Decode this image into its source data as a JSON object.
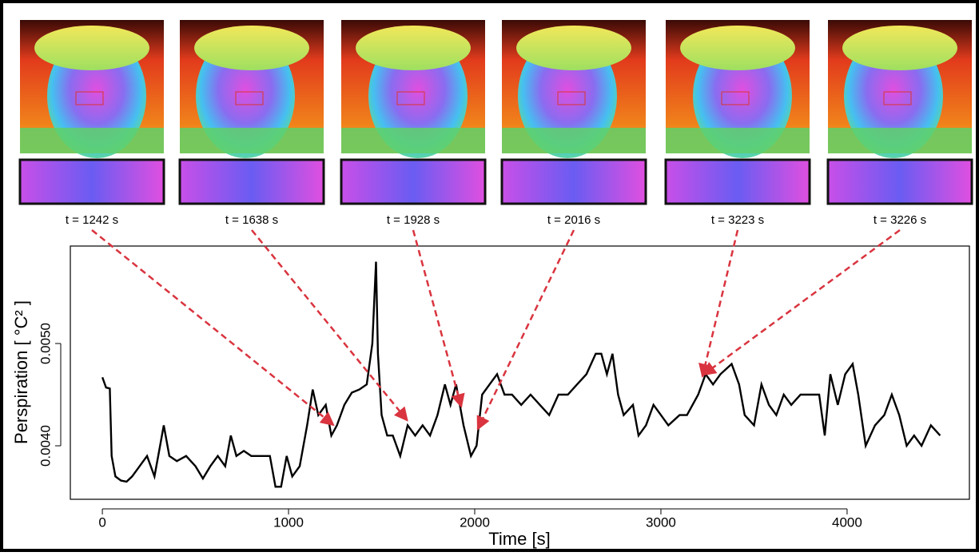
{
  "chart_data": {
    "type": "line",
    "xlabel": "Time [s]",
    "ylabel": "Perspiration [ °C² ]",
    "color": "#000000",
    "arrow_color": "#d9343f",
    "xlim": [
      -172,
      4657
    ],
    "ylim": [
      0.003477,
      0.005953
    ],
    "xticks": [
      0,
      1000,
      2000,
      3000,
      4000
    ],
    "yticks": [
      {
        "value": 0.004,
        "label": "0.0040"
      },
      {
        "value": 0.005,
        "label": "0.0050"
      }
    ],
    "annotations": [
      {
        "label": "t = 1242 s",
        "x": 1242
      },
      {
        "label": "t = 1638 s",
        "x": 1638
      },
      {
        "label": "t = 1928 s",
        "x": 1928
      },
      {
        "label": "t = 2016 s",
        "x": 2016
      },
      {
        "label": "t = 3223 s",
        "x": 3223
      },
      {
        "label": "t = 3226 s",
        "x": 3226
      }
    ],
    "x": [
      0,
      20,
      40,
      50,
      70,
      100,
      130,
      160,
      200,
      240,
      280,
      310,
      330,
      360,
      400,
      450,
      500,
      540,
      580,
      620,
      660,
      690,
      720,
      760,
      800,
      850,
      900,
      930,
      960,
      990,
      1020,
      1060,
      1100,
      1130,
      1160,
      1200,
      1230,
      1260,
      1300,
      1340,
      1380,
      1420,
      1450,
      1470,
      1480,
      1500,
      1530,
      1560,
      1600,
      1640,
      1680,
      1720,
      1760,
      1800,
      1840,
      1870,
      1900,
      1940,
      1980,
      2010,
      2040,
      2080,
      2120,
      2160,
      2200,
      2250,
      2300,
      2350,
      2400,
      2450,
      2500,
      2550,
      2600,
      2650,
      2680,
      2710,
      2740,
      2770,
      2800,
      2850,
      2880,
      2920,
      2960,
      3000,
      3040,
      3100,
      3140,
      3200,
      3240,
      3280,
      3320,
      3380,
      3420,
      3450,
      3500,
      3540,
      3580,
      3620,
      3660,
      3700,
      3750,
      3800,
      3850,
      3880,
      3910,
      3950,
      3990,
      4030,
      4060,
      4100,
      4150,
      4200,
      4240,
      4280,
      4320,
      4360,
      4400,
      4450,
      4500
    ],
    "values": [
      0.00467,
      0.00457,
      0.00456,
      0.0039,
      0.0037,
      0.00366,
      0.00365,
      0.0037,
      0.0038,
      0.0039,
      0.0037,
      0.004,
      0.0042,
      0.0039,
      0.00385,
      0.0039,
      0.0038,
      0.00368,
      0.0038,
      0.0039,
      0.0038,
      0.0041,
      0.0039,
      0.00395,
      0.0039,
      0.0039,
      0.0039,
      0.0036,
      0.0036,
      0.0039,
      0.0037,
      0.0038,
      0.0042,
      0.00455,
      0.0043,
      0.0044,
      0.0041,
      0.0042,
      0.0044,
      0.00452,
      0.00455,
      0.0046,
      0.005,
      0.0058,
      0.0049,
      0.0043,
      0.0041,
      0.0041,
      0.0039,
      0.0042,
      0.0041,
      0.0042,
      0.0041,
      0.0043,
      0.0046,
      0.0044,
      0.0046,
      0.0042,
      0.0039,
      0.004,
      0.0045,
      0.0046,
      0.0047,
      0.0045,
      0.0045,
      0.0044,
      0.0045,
      0.0044,
      0.0043,
      0.0045,
      0.0045,
      0.0046,
      0.0047,
      0.0049,
      0.0049,
      0.0047,
      0.0049,
      0.0045,
      0.0043,
      0.0044,
      0.0041,
      0.0042,
      0.0044,
      0.0043,
      0.0042,
      0.0043,
      0.0043,
      0.0045,
      0.0047,
      0.0046,
      0.0047,
      0.0048,
      0.0046,
      0.0043,
      0.0042,
      0.0046,
      0.0044,
      0.0043,
      0.0045,
      0.0044,
      0.0045,
      0.0045,
      0.0045,
      0.0041,
      0.0047,
      0.0044,
      0.0047,
      0.0048,
      0.0045,
      0.004,
      0.0042,
      0.0043,
      0.0045,
      0.0043,
      0.004,
      0.0041,
      0.004,
      0.0042,
      0.0041
    ]
  }
}
